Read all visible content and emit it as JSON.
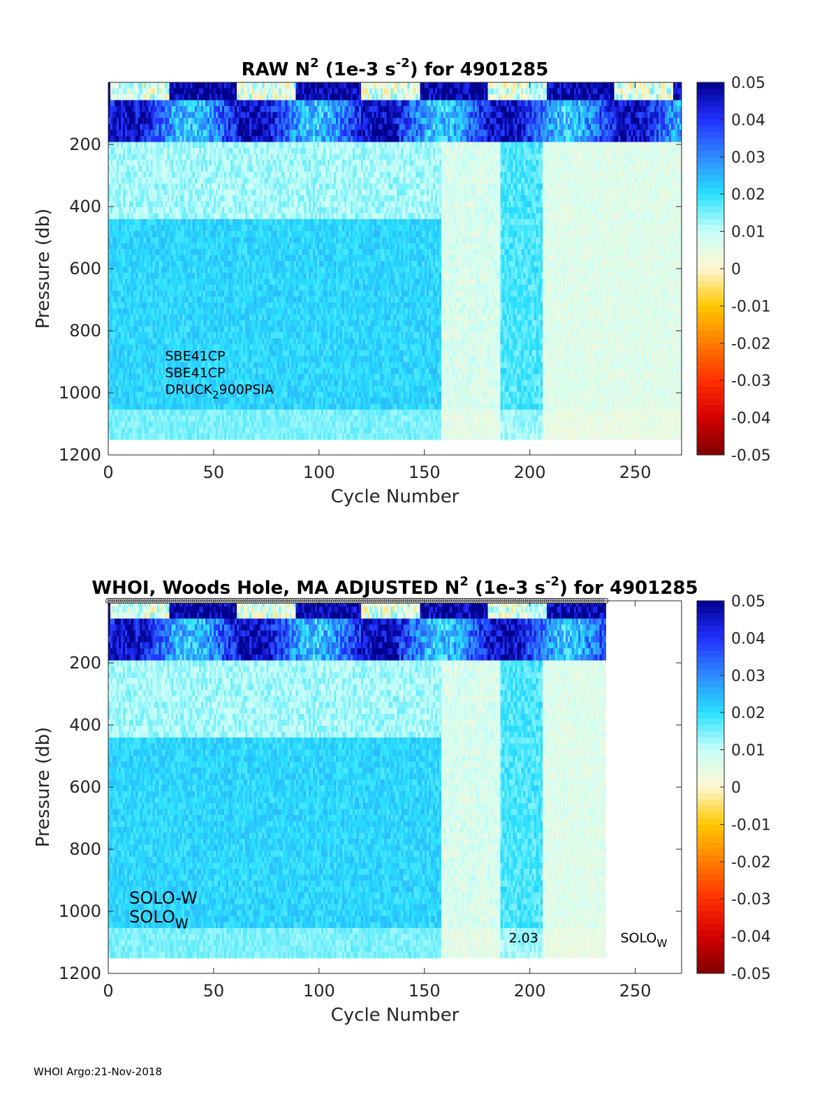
{
  "footer": "WHOI Argo:21-Nov-2018",
  "colorbar": {
    "ticks": [
      "0.05",
      "0.04",
      "0.03",
      "0.02",
      "0.01",
      "0",
      "-0.01",
      "-0.02",
      "-0.03",
      "-0.04",
      "-0.05"
    ],
    "range": [
      -0.05,
      0.05
    ],
    "colormap": [
      "#7f0000",
      "#d40000",
      "#ff3000",
      "#ff7c00",
      "#ffc800",
      "#fff6d2",
      "#c8fff8",
      "#28e0ff",
      "#2f8aff",
      "#2230ff",
      "#00008c"
    ]
  },
  "chart_data": [
    {
      "type": "heatmap",
      "title_parts": [
        "RAW N",
        "2",
        " (1e-3 s",
        "-2",
        ") for 4901285"
      ],
      "xlabel": "Cycle Number",
      "ylabel": "Pressure (db)",
      "xlim": [
        0,
        272
      ],
      "ylim": [
        1200,
        0
      ],
      "xticks": [
        0,
        50,
        100,
        150,
        200,
        250
      ],
      "yticks": [
        200,
        400,
        600,
        800,
        1000,
        1200
      ],
      "last_cycle": 272,
      "show_markers": false,
      "annotations": [
        {
          "lines": [
            {
              "text": "SBE41CP"
            },
            {
              "text": "SBE41CP"
            },
            {
              "text": "DRUCK",
              "sub": "2",
              "after": "900PSIA"
            }
          ],
          "x": 27,
          "y": 895
        }
      ],
      "series": [
        {
          "name": "N2",
          "values": "sampled from displayed colors"
        }
      ]
    },
    {
      "type": "heatmap",
      "title_parts": [
        "WHOI, Woods Hole, MA  ADJUSTED N",
        "2",
        " (1e-3 s",
        "-2",
        ") for 4901285"
      ],
      "xlabel": "Cycle Number",
      "ylabel": "Pressure (db)",
      "xlim": [
        0,
        272
      ],
      "ylim": [
        1200,
        0
      ],
      "xticks": [
        0,
        50,
        100,
        150,
        200,
        250
      ],
      "yticks": [
        200,
        400,
        600,
        800,
        1000,
        1200
      ],
      "last_cycle": 236,
      "show_markers": true,
      "annotations": [
        {
          "lines": [
            {
              "text": "SOLO-W"
            },
            {
              "text": "SOLO",
              "sub": "W"
            }
          ],
          "x": 10,
          "y": 975,
          "large": true
        },
        {
          "lines": [
            {
              "text": "2.03"
            }
          ],
          "x": 190,
          "y": 1100
        },
        {
          "lines": [
            {
              "text": "SOLO",
              "sub": "W"
            }
          ],
          "x": 243,
          "y": 1100
        }
      ]
    }
  ]
}
